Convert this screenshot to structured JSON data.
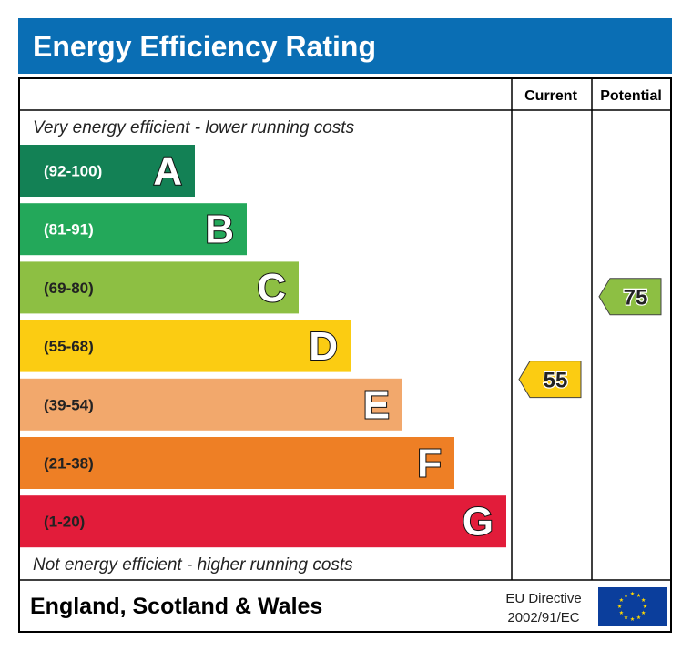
{
  "header": {
    "title": "Energy Efficiency Rating",
    "background": "#0a6eb4"
  },
  "columns": {
    "current": "Current",
    "potential": "Potential"
  },
  "notes": {
    "top": "Very energy efficient - lower running costs",
    "bottom": "Not energy efficient - higher running costs"
  },
  "footer": {
    "region": "England, Scotland & Wales",
    "directive_line1": "EU Directive",
    "directive_line2": "2002/91/EC",
    "flag": "eu-flag-icon"
  },
  "chart_data": {
    "type": "bar",
    "title": "Energy Efficiency Rating",
    "categories": [
      "A",
      "B",
      "C",
      "D",
      "E",
      "F",
      "G"
    ],
    "ranges": [
      "(92-100)",
      "(81-91)",
      "(69-80)",
      "(55-68)",
      "(39-54)",
      "(21-38)",
      "(1-20)"
    ],
    "colors": [
      "#138155",
      "#23a85a",
      "#8dbf43",
      "#fbcc12",
      "#f2a86c",
      "#ee7f25",
      "#e21c3a"
    ],
    "current": {
      "label": "Current",
      "value": 55,
      "band": "D",
      "color": "#fbcc12"
    },
    "potential": {
      "label": "Potential",
      "value": 75,
      "band": "C",
      "color": "#8dbf43"
    }
  }
}
